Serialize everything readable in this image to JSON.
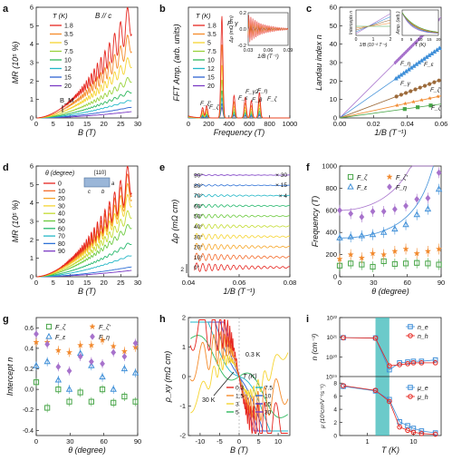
{
  "panels": [
    {
      "letter": "a",
      "xlabel": "B (T)",
      "ylabel": "MR (10⁵ %)",
      "xticks": [
        "0",
        "5",
        "10",
        "15",
        "20",
        "25",
        "30"
      ],
      "yticks": [
        "0",
        "1",
        "2",
        "3",
        "4",
        "5",
        "6"
      ],
      "annots": [
        "T (K)",
        "B // c",
        "B_M"
      ],
      "legend": [
        "1.8",
        "3.5",
        "5",
        "7.5",
        "10",
        "12",
        "15",
        "20"
      ]
    },
    {
      "letter": "b",
      "xlabel": "Frequency (T)",
      "ylabel": "FFT Amp. (arb. units)",
      "xticks": [
        "0",
        "200",
        "400",
        "600",
        "800",
        "1000"
      ],
      "yticks": [],
      "annots": [
        "T (K)",
        "F_γ",
        "F_ε",
        "F_ξ'",
        "F_ζ",
        "F_γ2",
        "F_β",
        "F_η",
        "F_ζ"
      ],
      "legend": [
        "1.8",
        "3.5",
        "5",
        "7.5",
        "10",
        "12",
        "15",
        "20"
      ],
      "inset": {
        "xlabel": "1/B (T⁻¹)",
        "ylabel": "Δρ (mΩ cm)",
        "xticks": [
          "0.03",
          "0.06",
          "0.09"
        ],
        "yticks": [
          "-0.2",
          "0.0",
          "0.2"
        ]
      }
    },
    {
      "letter": "c",
      "xlabel": "1/B (T⁻¹)",
      "ylabel": "Landau index n",
      "xticks": [
        "0.00",
        "0.02",
        "0.04",
        "0.06"
      ],
      "yticks": [
        "0",
        "10",
        "20",
        "30",
        "40",
        "50",
        "60"
      ],
      "annots": [
        "F_η",
        "F_ε",
        "F_γ",
        "F_ζ'",
        "F_ζ"
      ],
      "inset1": {
        "xlabel": "1/B (10⁻² T⁻¹)",
        "ylabel": "Intercepts n",
        "xticks": [
          "0",
          "1",
          "2"
        ]
      },
      "inset2": {
        "xlabel": "T (K)",
        "ylabel": "Amp. (arb.)",
        "xticks": [
          "0",
          "5",
          "10",
          "15",
          "20"
        ]
      }
    },
    {
      "letter": "d",
      "xlabel": "B (T)",
      "ylabel": "MR (10⁵ %)",
      "xticks": [
        "0",
        "5",
        "10",
        "15",
        "20",
        "25",
        "30"
      ],
      "yticks": [
        "0",
        "1",
        "2",
        "3",
        "4",
        "5",
        "6"
      ],
      "annots": [
        "θ (degree)",
        "[110]",
        "a",
        "b",
        "c"
      ],
      "legend": [
        "0",
        "10",
        "20",
        "30",
        "40",
        "50",
        "60",
        "70",
        "80",
        "90"
      ]
    },
    {
      "letter": "e",
      "xlabel": "1/B (T⁻¹)",
      "ylabel": "Δρ (mΩ cm)",
      "xticks": [
        "0.04",
        "0.06",
        "0.08"
      ],
      "yticks": [],
      "annots": [
        "2"
      ],
      "rows": [
        "90°",
        "80°",
        "70°",
        "60°",
        "50°",
        "40°",
        "30°",
        "20°",
        "10°",
        "0°"
      ],
      "mults": [
        "× 30",
        "× 15",
        "× 4"
      ]
    },
    {
      "letter": "f",
      "xlabel": "θ (degree)",
      "ylabel": "Frequency (T)",
      "xticks": [
        "0",
        "30",
        "60",
        "90"
      ],
      "yticks": [
        "0",
        "200",
        "400",
        "600",
        "800",
        "1000"
      ],
      "legend": [
        "F_ζ",
        "F_ζ'",
        "F_ε",
        "F_η"
      ]
    },
    {
      "letter": "g",
      "xlabel": "θ (degree)",
      "ylabel": "Intercept n",
      "xticks": [
        "0",
        "30",
        "60",
        "90"
      ],
      "yticks": [
        "-0.4",
        "-0.2",
        "0.0",
        "0.2",
        "0.4",
        "0.6"
      ],
      "legend": [
        "F_ζ",
        "F_ζ'",
        "F_ε",
        "F_η"
      ]
    },
    {
      "letter": "h",
      "xlabel": "B (T)",
      "ylabel": "ρ_xy (mΩ cm)",
      "xticks": [
        "-10",
        "-5",
        "0",
        "5",
        "10"
      ],
      "yticks": [
        "-2",
        "-1",
        "0",
        "1",
        "2"
      ],
      "annots": [
        "0.3 K",
        "30 K",
        "T (K)"
      ],
      "legend": [
        "0.3",
        "1.5",
        "3",
        "5",
        "7.5",
        "10",
        "15",
        "30"
      ]
    },
    {
      "letter": "i",
      "xlabel": "T (K)",
      "ylabel": "n (cm⁻³)",
      "ylabel2": "μ (10³cm²V⁻¹s⁻¹)",
      "xticks": [
        "1",
        "10"
      ],
      "yticks": [
        "10¹⁹",
        "10²⁰",
        "10²¹",
        "10²²"
      ],
      "yticks2": [
        "0",
        "2",
        "4",
        "6",
        "8"
      ],
      "legend": [
        "n_e",
        "n_h"
      ],
      "legend2": [
        "μ_e",
        "μ_h"
      ]
    }
  ],
  "colors": {
    "temp8": [
      "#e6261f",
      "#f58b2a",
      "#f6d431",
      "#9ad23b",
      "#2fb85e",
      "#21b8c8",
      "#2f63d3",
      "#7b3bc4"
    ],
    "angle10": [
      "#e6261f",
      "#f36b2a",
      "#f6a62a",
      "#f6d431",
      "#c4dc33",
      "#6cca3e",
      "#26b86c",
      "#25b7c7",
      "#2f72d6",
      "#7b3bc4"
    ],
    "Fzeta": "#47a547",
    "Fzetap": "#f2892d",
    "Feps": "#3f8fd8",
    "Feta": "#a772cc",
    "shade": "#39b8b8"
  },
  "chart_data": [
    {
      "panel": "a",
      "type": "line",
      "xlabel": "B (T)",
      "ylabel": "MR (10⁵ %)",
      "xlim": [
        0,
        30
      ],
      "ylim": [
        0,
        6.2
      ],
      "series_names": [
        "1.8",
        "3.5",
        "5",
        "7.5",
        "10",
        "12",
        "15",
        "20"
      ],
      "series_end_values": [
        5.6,
        4.3,
        3.2,
        2.2,
        1.5,
        1.0,
        0.6,
        0.35
      ],
      "B_M": 8
    },
    {
      "panel": "b",
      "type": "line",
      "xlabel": "Frequency (T)",
      "ylabel": "FFT Amp. (arb. units)",
      "xlim": [
        0,
        1000
      ],
      "peaks": [
        {
          "label": "F_ξ'",
          "x": 140,
          "amp": 0.1
        },
        {
          "label": "F_ζ",
          "x": 180,
          "amp": 0.12
        },
        {
          "label": "F_γ",
          "x": 330,
          "amp": 1.0
        },
        {
          "label": "F_ε",
          "x": 450,
          "amp": 0.22
        },
        {
          "label": "F_γ2",
          "x": 560,
          "amp": 0.2
        },
        {
          "label": "F_β",
          "x": 620,
          "amp": 0.17
        },
        {
          "label": "F_η",
          "x": 700,
          "amp": 0.25
        }
      ]
    },
    {
      "panel": "c",
      "type": "scatter",
      "xlabel": "1/B (T⁻¹)",
      "ylabel": "Landau index n",
      "xlim": [
        0,
        0.065
      ],
      "ylim": [
        0,
        62
      ],
      "series": [
        {
          "name": "F_η",
          "slope": 870
        },
        {
          "name": "F_ε",
          "slope": 610
        },
        {
          "name": "F_γ",
          "slope": 330
        },
        {
          "name": "F_ζ'",
          "slope": 190
        },
        {
          "name": "F_ζ",
          "slope": 120
        }
      ]
    },
    {
      "panel": "d",
      "type": "line",
      "xlabel": "B (T)",
      "ylabel": "MR (10⁵ %)",
      "xlim": [
        0,
        30
      ],
      "ylim": [
        0,
        6.2
      ],
      "series_names": [
        "0",
        "10",
        "20",
        "30",
        "40",
        "50",
        "60",
        "70",
        "80",
        "90"
      ],
      "series_end_values": [
        5.6,
        5.3,
        4.9,
        4.4,
        3.6,
        2.9,
        1.9,
        1.2,
        0.55,
        0.35
      ]
    },
    {
      "panel": "e",
      "type": "line",
      "xlabel": "1/B (T⁻¹)",
      "ylabel": "Δρ (mΩ cm)",
      "xlim": [
        0.03,
        0.08
      ],
      "rows": [
        "90°",
        "80°",
        "70°",
        "60°",
        "50°",
        "40°",
        "30°",
        "20°",
        "10°",
        "0°"
      ]
    },
    {
      "panel": "f",
      "type": "scatter",
      "xlabel": "θ (degree)",
      "ylabel": "Frequency (T)",
      "xlim": [
        0,
        92
      ],
      "ylim": [
        0,
        1000
      ],
      "x": [
        0,
        10,
        20,
        30,
        40,
        50,
        60,
        70,
        80,
        90
      ],
      "series": [
        {
          "name": "F_ζ",
          "values": [
            100,
            120,
            110,
            90,
            140,
            115,
            120,
            125,
            120,
            110
          ]
        },
        {
          "name": "F_ζ'",
          "values": [
            160,
            200,
            170,
            210,
            200,
            230,
            250,
            210,
            230,
            250
          ]
        },
        {
          "name": "F_ε",
          "values": [
            350,
            360,
            370,
            380,
            400,
            430,
            470,
            560,
            610,
            790
          ]
        },
        {
          "name": "F_η",
          "values": [
            600,
            570,
            540,
            590,
            590,
            610,
            640,
            700,
            710,
            940
          ]
        }
      ]
    },
    {
      "panel": "g",
      "type": "scatter",
      "xlabel": "θ (degree)",
      "ylabel": "Intercept n",
      "xlim": [
        0,
        92
      ],
      "ylim": [
        -0.45,
        0.7
      ],
      "x": [
        0,
        10,
        20,
        30,
        40,
        50,
        60,
        70,
        80,
        90
      ],
      "series": [
        {
          "name": "F_ζ",
          "values": [
            0.07,
            -0.18,
            0.0,
            -0.12,
            -0.03,
            -0.12,
            0.0,
            -0.13,
            -0.07,
            -0.12
          ]
        },
        {
          "name": "F_ζ'",
          "values": [
            0.46,
            0.46,
            0.38,
            0.36,
            0.43,
            0.43,
            0.48,
            0.42,
            0.37,
            0.41
          ]
        },
        {
          "name": "F_ε",
          "values": [
            0.23,
            0.27,
            0.09,
            0.0,
            0.35,
            0.23,
            0.12,
            0.0,
            0.2,
            0.16
          ]
        },
        {
          "name": "F_η",
          "values": [
            0.54,
            0.44,
            0.22,
            0.18,
            0.32,
            0.27,
            0.25,
            0.36,
            0.32,
            0.45
          ]
        }
      ]
    },
    {
      "panel": "h",
      "type": "line",
      "xlabel": "B (T)",
      "ylabel": "ρ_xy (mΩ cm)",
      "xlim": [
        -13,
        13
      ],
      "ylim": [
        -2.6,
        2.6
      ],
      "series_names": [
        "0.3",
        "1.5",
        "3",
        "5",
        "7.5",
        "10",
        "15",
        "30"
      ]
    },
    {
      "panel": "i",
      "type": "line",
      "xlabel": "T (K)",
      "x": [
        0.3,
        1.5,
        3,
        5,
        7.5,
        10,
        15,
        30
      ],
      "yscale": "log",
      "ylim": [
        1e+19,
        1e+22
      ],
      "series": [
        {
          "name": "n_e",
          "values": [
            9.5e+20,
            9.2e+20,
            2.2e+19,
            5e+19,
            5.5e+19,
            6e+19,
            6e+19,
            7e+19
          ]
        },
        {
          "name": "n_h",
          "values": [
            9.5e+20,
            9e+20,
            3.5e+19,
            4e+19,
            4.5e+19,
            5e+19,
            5e+19,
            5e+19
          ]
        }
      ],
      "series2": [
        {
          "name": "μ_e",
          "values": [
            7.5,
            6.8,
            5.5,
            2.1,
            1.5,
            1.1,
            0.7,
            0.4
          ]
        },
        {
          "name": "μ_h",
          "values": [
            7.6,
            6.9,
            5.2,
            1.3,
            0.8,
            0.5,
            0.3,
            0.2
          ]
        }
      ],
      "shaded_T": [
        1.5,
        3
      ]
    }
  ]
}
